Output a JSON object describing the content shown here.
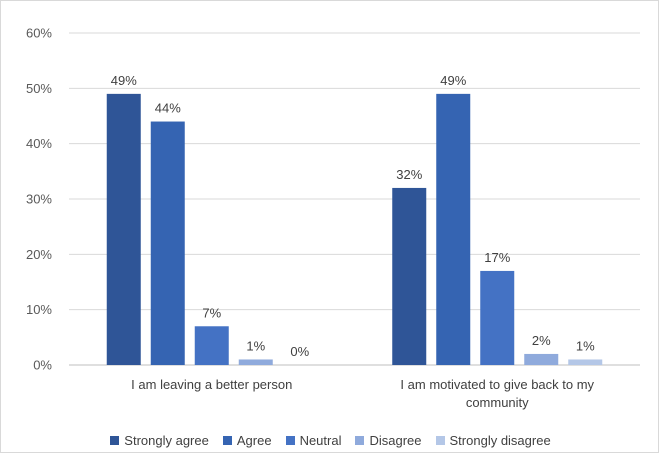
{
  "chart_data": {
    "type": "bar",
    "categories": [
      [
        "I am leaving a better person"
      ],
      [
        "I am motivated to give back to my",
        "community"
      ]
    ],
    "series": [
      {
        "name": "Strongly agree",
        "values": [
          49,
          32
        ],
        "labels": [
          "49%",
          "32%"
        ],
        "color": "#2f5597"
      },
      {
        "name": "Agree",
        "values": [
          44,
          49
        ],
        "labels": [
          "44%",
          "49%"
        ],
        "color": "#3564b2"
      },
      {
        "name": "Neutral",
        "values": [
          7,
          17
        ],
        "labels": [
          "7%",
          "17%"
        ],
        "color": "#4472c4"
      },
      {
        "name": "Disagree",
        "values": [
          1,
          2
        ],
        "labels": [
          "1%",
          "2%"
        ],
        "color": "#8faadc"
      },
      {
        "name": "Strongly disagree",
        "values": [
          0,
          1
        ],
        "labels": [
          "0%",
          "1%"
        ],
        "color": "#b4c7e7"
      }
    ],
    "yticks": [
      "0%",
      "10%",
      "20%",
      "30%",
      "40%",
      "50%",
      "60%"
    ],
    "ylim": [
      0,
      60
    ],
    "grid": true,
    "legend_position": "bottom"
  }
}
